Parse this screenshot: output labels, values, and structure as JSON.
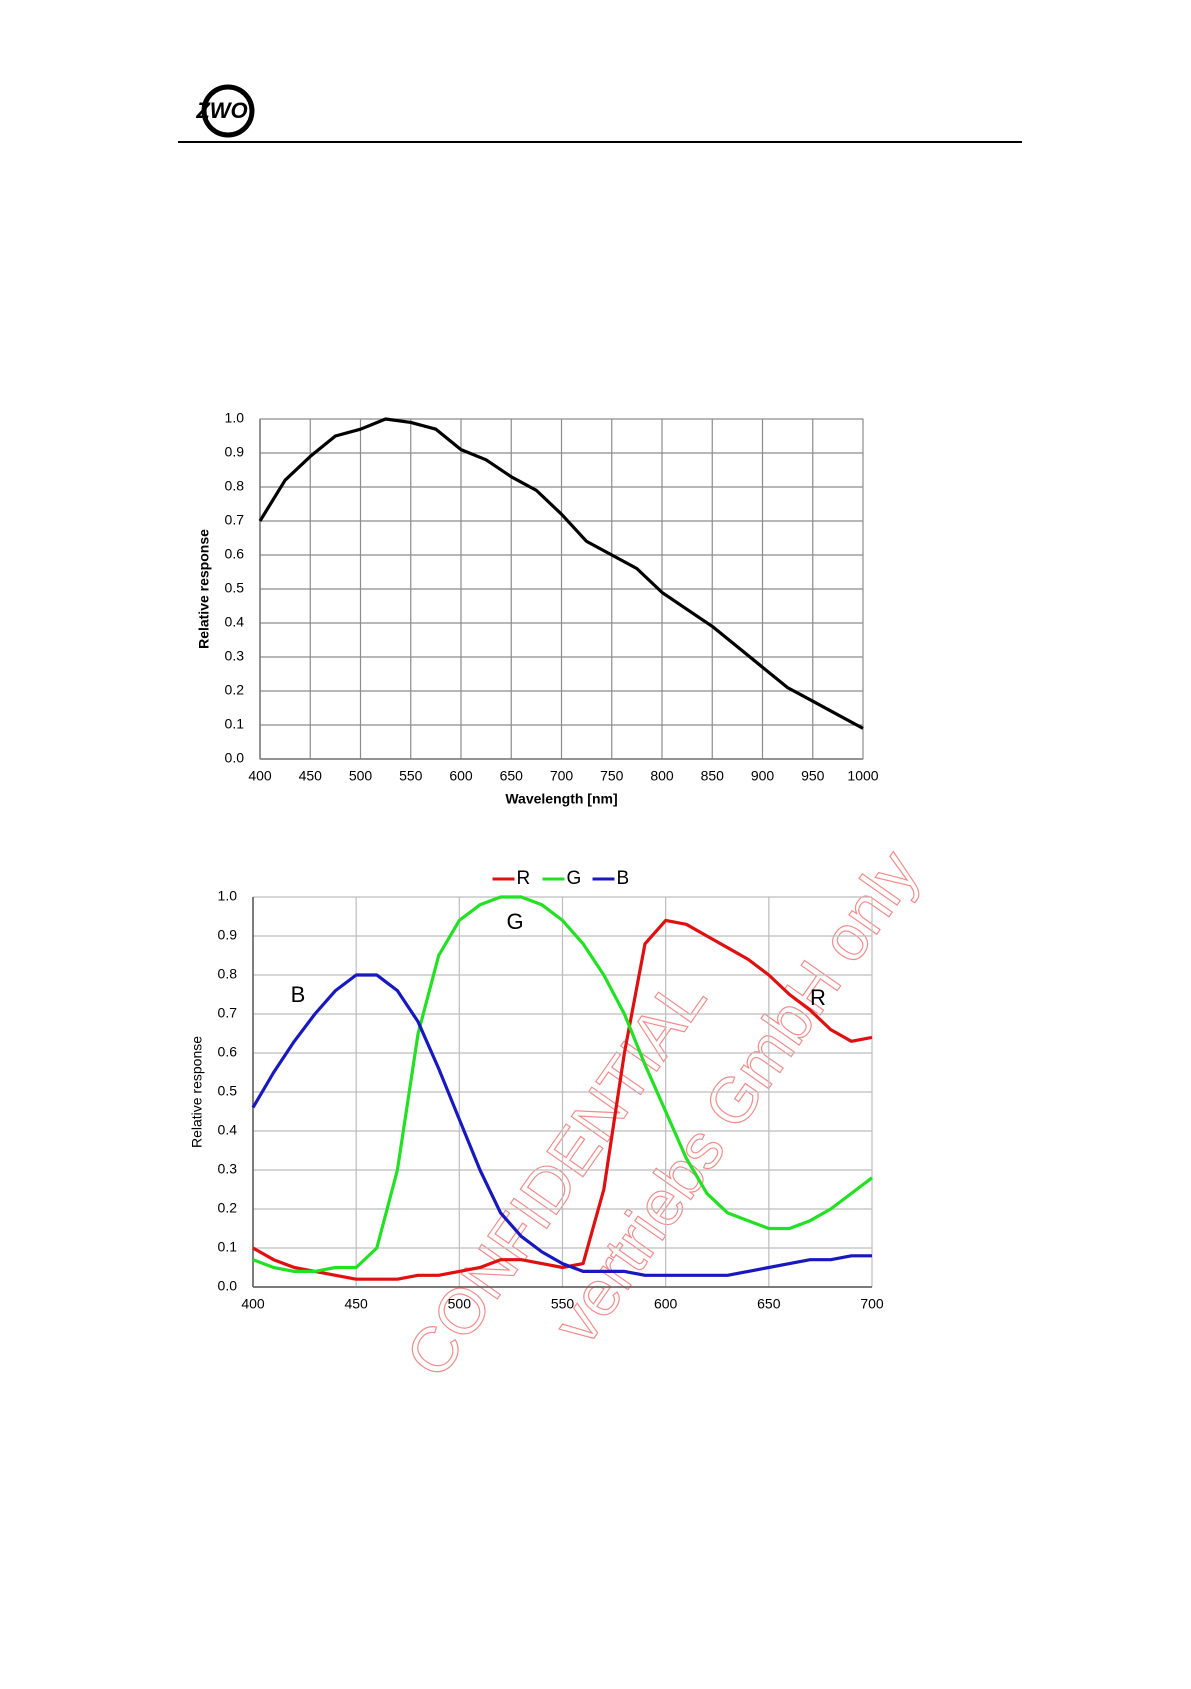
{
  "header": {
    "logo": "ZWO"
  },
  "watermark": [
    "CONFIDENTIAL",
    "vertriebs GmbH only"
  ],
  "chart_data": [
    {
      "type": "line",
      "xlabel": "Wavelength [nm]",
      "ylabel": "Relative response",
      "color": "#000000",
      "grid": true,
      "x": [
        400,
        425,
        450,
        475,
        500,
        525,
        550,
        575,
        600,
        625,
        650,
        675,
        700,
        725,
        750,
        775,
        800,
        825,
        850,
        875,
        900,
        925,
        950,
        975,
        1000
      ],
      "values": [
        0.7,
        0.82,
        0.89,
        0.95,
        0.97,
        1.0,
        0.99,
        0.97,
        0.91,
        0.88,
        0.83,
        0.79,
        0.72,
        0.64,
        0.6,
        0.56,
        0.49,
        0.44,
        0.39,
        0.33,
        0.27,
        0.21,
        0.17,
        0.13,
        0.09
      ],
      "xlim": [
        400,
        1000
      ],
      "xticks": [
        400,
        450,
        500,
        550,
        600,
        650,
        700,
        750,
        800,
        850,
        900,
        950,
        1000
      ],
      "ylim": [
        0,
        1
      ],
      "yticks": [
        {
          "value": 0,
          "label": "0.0"
        },
        0.1,
        0.2,
        0.3,
        0.4,
        0.5,
        0.6,
        0.7,
        0.8,
        0.9,
        {
          "value": 1,
          "label": "1.0"
        }
      ]
    },
    {
      "type": "line",
      "ylabel": "Relative response",
      "grid": true,
      "legend": "top",
      "x": [
        400,
        410,
        420,
        430,
        440,
        450,
        460,
        470,
        480,
        490,
        500,
        510,
        520,
        530,
        540,
        550,
        560,
        570,
        580,
        590,
        600,
        610,
        620,
        630,
        640,
        650,
        660,
        670,
        680,
        690,
        700
      ],
      "series": [
        {
          "name": "R",
          "color": "#e01010",
          "values": [
            0.1,
            0.07,
            0.05,
            0.04,
            0.03,
            0.02,
            0.02,
            0.02,
            0.03,
            0.03,
            0.04,
            0.05,
            0.07,
            0.07,
            0.06,
            0.05,
            0.06,
            0.25,
            0.6,
            0.88,
            0.94,
            0.93,
            0.9,
            0.87,
            0.84,
            0.8,
            0.75,
            0.71,
            0.66,
            0.63,
            0.64
          ]
        },
        {
          "name": "G",
          "color": "#22e022",
          "values": [
            0.07,
            0.05,
            0.04,
            0.04,
            0.05,
            0.05,
            0.1,
            0.3,
            0.65,
            0.85,
            0.94,
            0.98,
            1.0,
            1.0,
            0.98,
            0.94,
            0.88,
            0.8,
            0.7,
            0.57,
            0.45,
            0.33,
            0.24,
            0.19,
            0.17,
            0.15,
            0.15,
            0.17,
            0.2,
            0.24,
            0.28
          ]
        },
        {
          "name": "B",
          "color": "#1818c0",
          "values": [
            0.46,
            0.55,
            0.63,
            0.7,
            0.76,
            0.8,
            0.8,
            0.76,
            0.68,
            0.56,
            0.43,
            0.3,
            0.19,
            0.13,
            0.09,
            0.06,
            0.04,
            0.04,
            0.04,
            0.03,
            0.03,
            0.03,
            0.03,
            0.03,
            0.04,
            0.05,
            0.06,
            0.07,
            0.07,
            0.08,
            0.08
          ]
        }
      ],
      "annotations": [
        "B",
        "G",
        "R"
      ],
      "xlim": [
        400,
        700
      ],
      "xticks": [
        400,
        450,
        500,
        550,
        600,
        650,
        700
      ],
      "ylim": [
        0,
        1
      ],
      "yticks": [
        {
          "value": 0,
          "label": "0.0"
        },
        0.1,
        0.2,
        0.3,
        0.4,
        0.5,
        0.6,
        0.7,
        0.8,
        0.9,
        {
          "value": 1,
          "label": "1.0"
        }
      ]
    }
  ]
}
